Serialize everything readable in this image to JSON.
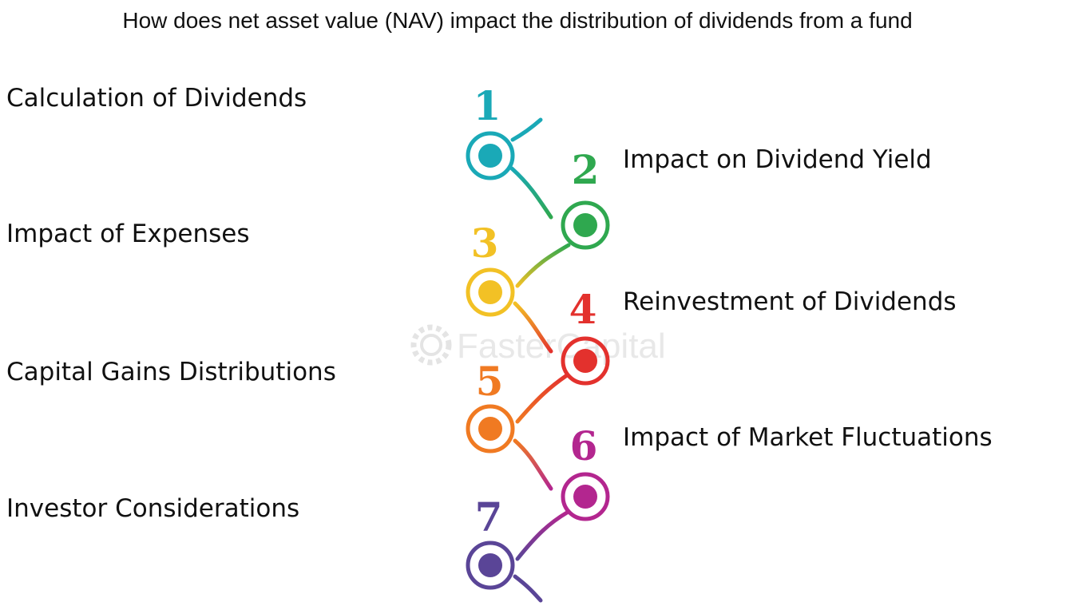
{
  "title": "How does net asset value (NAV) impact the distribution of dividends from a fund",
  "steps": [
    {
      "number": "1",
      "label": "Calculation of Dividends",
      "color": "#1aa9b7"
    },
    {
      "number": "2",
      "label": "Impact on Dividend Yield",
      "color": "#2fa84f"
    },
    {
      "number": "3",
      "label": "Impact of Expenses",
      "color": "#f2c125"
    },
    {
      "number": "4",
      "label": "Reinvestment of Dividends",
      "color": "#e3312d"
    },
    {
      "number": "5",
      "label": "Capital Gains Distributions",
      "color": "#f07a22"
    },
    {
      "number": "6",
      "label": "Impact of Market Fluctuations",
      "color": "#b3268f"
    },
    {
      "number": "7",
      "label": "Investor Considerations",
      "color": "#5a4597"
    }
  ],
  "watermark": {
    "text": "FasterCapital",
    "icon": "gear-icon"
  }
}
